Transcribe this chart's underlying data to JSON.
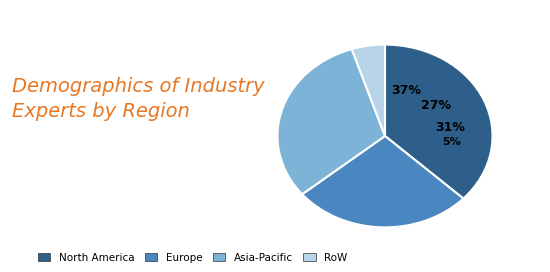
{
  "title_line1": "Demographics of Industry",
  "title_line2": "Experts by Region",
  "title_color": "#E87722",
  "slices": [
    37,
    27,
    31,
    5
  ],
  "labels": [
    "North America",
    "Europe",
    "Asia-Pacific",
    "RoW"
  ],
  "pct_labels": [
    "37%",
    "27%",
    "31%",
    "5%"
  ],
  "colors": [
    "#2E5F8A",
    "#4A86BF",
    "#7EB3D8",
    "#B8D4E8"
  ],
  "edge_color": "#FFFFFF",
  "background_color": "#FFFFFF",
  "legend_labels": [
    "North America",
    "Europe",
    "Asia-Pacific",
    "RoW"
  ],
  "startangle": 90,
  "figsize": [
    5.5,
    2.72
  ],
  "dpi": 100
}
